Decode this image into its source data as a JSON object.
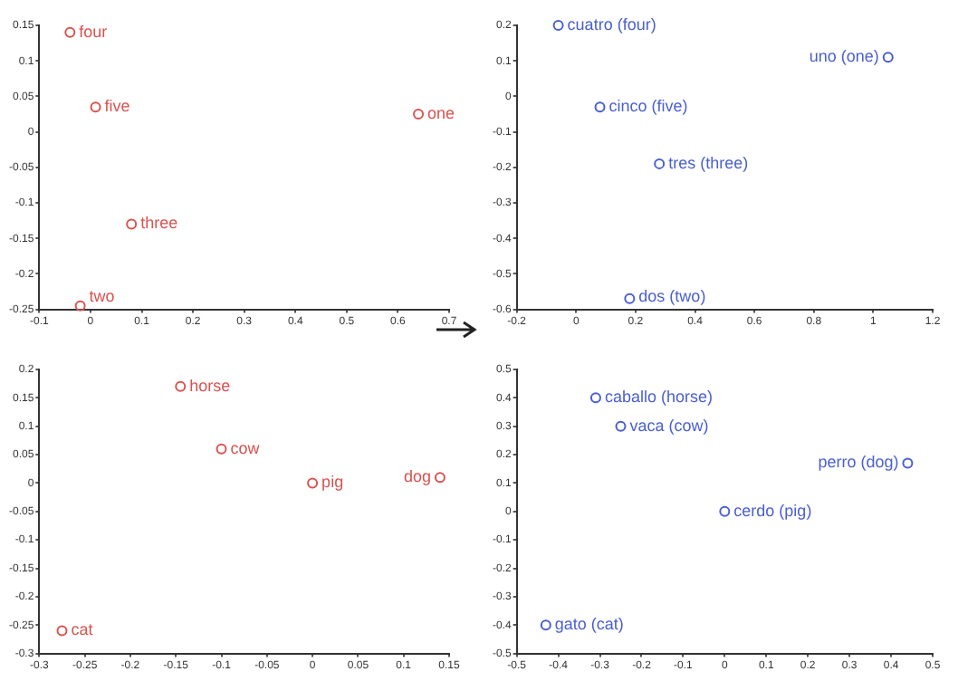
{
  "chart_data": [
    {
      "type": "scatter",
      "x": [
        0.64,
        -0.02,
        0.08,
        -0.04,
        0.01
      ],
      "series": [
        {
          "color": "#d9534f",
          "values": [
            0.025,
            -0.245,
            -0.13,
            0.14,
            0.035
          ]
        }
      ],
      "xlim": [
        -0.1,
        0.7
      ],
      "xticks": [
        -0.1,
        0,
        0.1,
        0.2,
        0.3,
        0.4,
        0.5,
        0.6,
        0.7
      ],
      "ylim": [
        -0.25,
        0.15
      ],
      "yticks": [
        -0.25,
        -0.2,
        -0.15,
        -0.1,
        -0.05,
        0,
        0.05,
        0.1,
        0.15
      ],
      "marker": "circle",
      "grid": false,
      "legend": false,
      "annotations": [
        {
          "text": "one",
          "x": 0.64,
          "y": 0.025
        },
        {
          "text": "two",
          "x": -0.02,
          "y": -0.245
        },
        {
          "text": "three",
          "x": 0.08,
          "y": -0.13
        },
        {
          "text": "four",
          "x": -0.04,
          "y": 0.14
        },
        {
          "text": "five",
          "x": 0.01,
          "y": 0.035
        }
      ]
    },
    {
      "type": "scatter",
      "x": [
        1.05,
        0.18,
        0.28,
        -0.06,
        0.08
      ],
      "series": [
        {
          "color": "#4a5fd0",
          "values": [
            0.11,
            -0.57,
            -0.19,
            0.2,
            -0.03
          ]
        }
      ],
      "xlim": [
        -0.2,
        1.2
      ],
      "xticks": [
        -0.2,
        0,
        0.2,
        0.4,
        0.6,
        0.8,
        1,
        1.2
      ],
      "ylim": [
        -0.6,
        0.2
      ],
      "yticks": [
        -0.6,
        -0.5,
        -0.4,
        -0.3,
        -0.2,
        -0.1,
        0,
        0.1,
        0.2
      ],
      "marker": "circle",
      "grid": false,
      "legend": false,
      "annotations": [
        {
          "text": "uno (one)",
          "x": 1.05,
          "y": 0.11
        },
        {
          "text": "dos (two)",
          "x": 0.18,
          "y": -0.57
        },
        {
          "text": "tres (three)",
          "x": 0.28,
          "y": -0.19
        },
        {
          "text": "cuatro (four)",
          "x": -0.06,
          "y": 0.2
        },
        {
          "text": "cinco (five)",
          "x": 0.08,
          "y": -0.03
        }
      ]
    },
    {
      "type": "scatter",
      "x": [
        -0.145,
        -0.1,
        0,
        0.14,
        -0.275
      ],
      "series": [
        {
          "color": "#d9534f",
          "values": [
            0.17,
            0.06,
            0,
            0.01,
            -0.26
          ]
        }
      ],
      "xlim": [
        -0.3,
        0.15
      ],
      "xticks": [
        -0.3,
        -0.25,
        -0.2,
        -0.15,
        -0.1,
        -0.05,
        0,
        0.05,
        0.1,
        0.15
      ],
      "ylim": [
        -0.3,
        0.2
      ],
      "yticks": [
        -0.3,
        -0.25,
        -0.2,
        -0.15,
        -0.1,
        -0.05,
        0,
        0.05,
        0.1,
        0.15,
        0.2
      ],
      "marker": "circle",
      "grid": false,
      "legend": false,
      "annotations": [
        {
          "text": "horse",
          "x": -0.145,
          "y": 0.17
        },
        {
          "text": "cow",
          "x": -0.1,
          "y": 0.06
        },
        {
          "text": "pig",
          "x": 0,
          "y": 0
        },
        {
          "text": "dog",
          "x": 0.14,
          "y": 0.01
        },
        {
          "text": "cat",
          "x": -0.275,
          "y": -0.26
        }
      ]
    },
    {
      "type": "scatter",
      "x": [
        -0.31,
        -0.25,
        0,
        0.44,
        -0.43
      ],
      "series": [
        {
          "color": "#4a5fd0",
          "values": [
            0.4,
            0.3,
            0,
            0.17,
            -0.4
          ]
        }
      ],
      "xlim": [
        -0.5,
        0.5
      ],
      "xticks": [
        -0.5,
        -0.4,
        -0.3,
        -0.2,
        -0.1,
        0,
        0.1,
        0.2,
        0.3,
        0.4,
        0.5
      ],
      "ylim": [
        -0.5,
        0.5
      ],
      "yticks": [
        -0.5,
        -0.4,
        -0.3,
        -0.2,
        -0.1,
        0,
        0.1,
        0.2,
        0.3,
        0.4,
        0.5
      ],
      "marker": "circle",
      "grid": false,
      "legend": false,
      "annotations": [
        {
          "text": "caballo (horse)",
          "x": -0.31,
          "y": 0.4
        },
        {
          "text": "vaca (cow)",
          "x": -0.25,
          "y": 0.3
        },
        {
          "text": "cerdo (pig)",
          "x": 0,
          "y": 0
        },
        {
          "text": "perro (dog)",
          "x": 0.44,
          "y": 0.17
        },
        {
          "text": "gato (cat)",
          "x": -0.43,
          "y": -0.4
        }
      ]
    }
  ]
}
